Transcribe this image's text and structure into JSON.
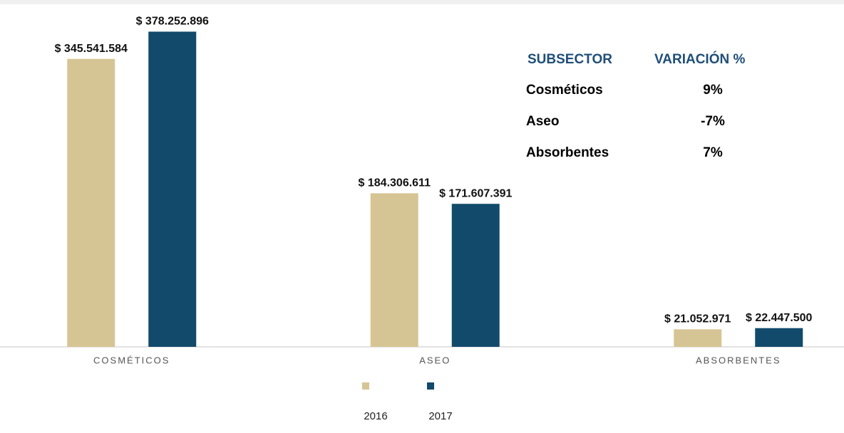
{
  "chart_data": {
    "type": "bar",
    "categories": [
      "COSMÉTICOS",
      "ASEO",
      "ABSORBENTES"
    ],
    "series": [
      {
        "name": "2016",
        "color": "#d6c594",
        "values": [
          345541584,
          184306611,
          21052971
        ],
        "value_labels": [
          "$ 345.541.584",
          "$ 184.306.611",
          "$ 21.052.971"
        ]
      },
      {
        "name": "2017",
        "color": "#124a6b",
        "values": [
          378252896,
          171607391,
          22447500
        ],
        "value_labels": [
          "$ 378.252.896",
          "$ 171.607.391",
          "$ 22.447.500"
        ]
      }
    ],
    "ylim": [
      0,
      400000000
    ],
    "table": {
      "header": [
        "SUBSECTOR",
        "VARIACIÓN %"
      ],
      "rows": [
        [
          "Cosméticos",
          "9%"
        ],
        [
          "Aseo",
          "-7%"
        ],
        [
          "Absorbentes",
          "7%"
        ]
      ]
    }
  }
}
